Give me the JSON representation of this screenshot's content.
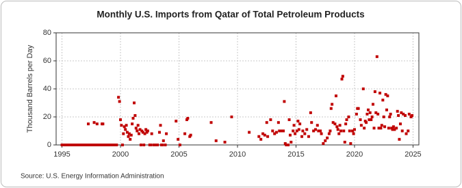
{
  "chart_data": {
    "type": "scatter",
    "title": "Monthly U.S. Imports from Qatar of Total Petroleum Products",
    "y_label": "Thousand Barrels per Day",
    "source": "Source: U.S. Energy Information Administration",
    "color": "#c00000",
    "grid": true,
    "xlim": [
      1994.5,
      2025.5
    ],
    "ylim": [
      0,
      80
    ],
    "xticks": [
      1995,
      2000,
      2005,
      2010,
      2015,
      2020,
      2025
    ],
    "yticks": [
      0,
      20,
      40,
      60,
      80
    ],
    "x": [
      1995.0,
      1995.17,
      1995.33,
      1995.5,
      1995.67,
      1995.83,
      1996.0,
      1996.17,
      1996.33,
      1996.5,
      1996.67,
      1996.83,
      1997.0,
      1997.17,
      1997.33,
      1997.5,
      1997.67,
      1997.83,
      1998.0,
      1998.17,
      1998.33,
      1998.5,
      1998.67,
      1998.83,
      1999.0,
      1999.17,
      1999.33,
      1999.5,
      1999.67,
      1997.25,
      1997.75,
      1998.0,
      1998.42,
      1998.5,
      1999.83,
      1999.92,
      2000.0,
      2000.08,
      2000.17,
      2000.25,
      2000.33,
      2000.42,
      2000.5,
      2000.58,
      2000.67,
      2000.75,
      2000.83,
      2000.92,
      2001.0,
      2001.08,
      2001.17,
      2001.25,
      2001.33,
      2001.42,
      2001.5,
      2001.58,
      2001.67,
      2001.75,
      2001.83,
      2001.92,
      2002.0,
      2002.08,
      2002.17,
      2002.25,
      2002.33,
      2002.5,
      2002.58,
      2002.67,
      2002.83,
      2003.0,
      2003.17,
      2003.33,
      2003.42,
      2003.5,
      2003.58,
      2003.67,
      2003.83,
      2003.92,
      2004.75,
      2004.92,
      2005.08,
      2005.5,
      2005.67,
      2005.75,
      2005.92,
      2006.0,
      2007.75,
      2008.17,
      2008.92,
      2009.5,
      2011.0,
      2011.83,
      2012.0,
      2012.17,
      2012.33,
      2012.5,
      2012.58,
      2012.83,
      2013.0,
      2013.17,
      2013.33,
      2013.5,
      2013.58,
      2013.75,
      2013.92,
      2014.0,
      2014.08,
      2014.17,
      2014.33,
      2014.42,
      2014.5,
      2014.58,
      2014.75,
      2014.83,
      2014.92,
      2015.08,
      2015.17,
      2015.25,
      2015.33,
      2015.5,
      2015.58,
      2015.75,
      2015.92,
      2016.08,
      2016.25,
      2016.33,
      2016.5,
      2016.67,
      2016.83,
      2016.92,
      2017.08,
      2017.17,
      2017.33,
      2017.5,
      2017.67,
      2017.83,
      2017.92,
      2018.0,
      2018.08,
      2018.17,
      2018.33,
      2018.42,
      2018.5,
      2018.58,
      2018.67,
      2018.75,
      2018.83,
      2018.92,
      2019.0,
      2019.08,
      2019.17,
      2019.25,
      2019.33,
      2019.5,
      2019.58,
      2019.67,
      2019.83,
      2019.92,
      2020.0,
      2020.17,
      2020.25,
      2020.33,
      2020.5,
      2020.58,
      2020.75,
      2020.83,
      2020.92,
      2021.0,
      2021.08,
      2021.17,
      2021.25,
      2021.33,
      2021.42,
      2021.5,
      2021.58,
      2021.67,
      2021.75,
      2021.83,
      2021.92,
      2022.0,
      2022.08,
      2022.17,
      2022.25,
      2022.33,
      2022.42,
      2022.5,
      2022.58,
      2022.67,
      2022.75,
      2022.83,
      2022.92,
      2023.0,
      2023.08,
      2023.17,
      2023.25,
      2023.33,
      2023.42,
      2023.58,
      2023.67,
      2023.75,
      2023.83,
      2023.92,
      2024.0,
      2024.08,
      2024.17,
      2024.33,
      2024.42,
      2024.58,
      2024.67,
      2024.83,
      2024.92
    ],
    "y": [
      0,
      0,
      0,
      0,
      0,
      0,
      0,
      0,
      0,
      0,
      0,
      0,
      0,
      0,
      0,
      0,
      0,
      0,
      0,
      0,
      0,
      0,
      0,
      0,
      0,
      0,
      0,
      0,
      0,
      15,
      16,
      15,
      15,
      15,
      34,
      31,
      18,
      14,
      0,
      8,
      13,
      11,
      14,
      9,
      6,
      8,
      4,
      7,
      15,
      19,
      30,
      21,
      12,
      10,
      14,
      8,
      11,
      0,
      10,
      9,
      0,
      8,
      11,
      9,
      10,
      0,
      0,
      8,
      0,
      0,
      0,
      9,
      14,
      0,
      0,
      3,
      0,
      8,
      17,
      4,
      0,
      8,
      18,
      19,
      6,
      7,
      16,
      3,
      2,
      20,
      9,
      6,
      4,
      8,
      7,
      16,
      6,
      18,
      10,
      8,
      9,
      16,
      10,
      10,
      10,
      31,
      1,
      0,
      0,
      18,
      7,
      2,
      10,
      14,
      8,
      10,
      17,
      11,
      15,
      6,
      10,
      8,
      11,
      6,
      23,
      16,
      10,
      11,
      14,
      10,
      10,
      8,
      1,
      3,
      5,
      8,
      10,
      26,
      29,
      16,
      15,
      35,
      13,
      11,
      8,
      14,
      10,
      47,
      49,
      10,
      2,
      15,
      18,
      20,
      10,
      1,
      10,
      8,
      11,
      22,
      26,
      26,
      18,
      14,
      40,
      12,
      17,
      16,
      22,
      25,
      18,
      23,
      18,
      20,
      29,
      12,
      38,
      23,
      63,
      22,
      12,
      37,
      12,
      14,
      32,
      20,
      13,
      36,
      25,
      35,
      12,
      20,
      22,
      12,
      11,
      13,
      11,
      12,
      24,
      21,
      4,
      15,
      23,
      10,
      22,
      21,
      8,
      10,
      22,
      20,
      21
    ]
  }
}
